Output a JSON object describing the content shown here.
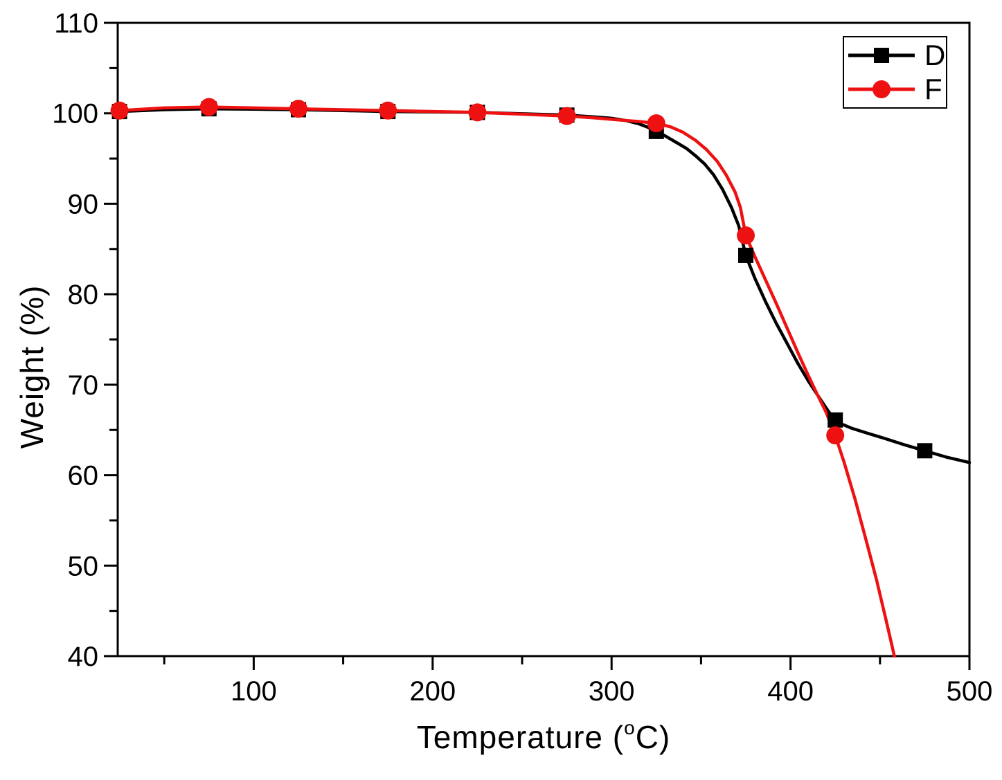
{
  "chart_data": {
    "type": "line",
    "title": "",
    "xlabel": "Temperature (°C)",
    "xlabel_parts": {
      "prefix": "Temperature (",
      "sup": "o",
      "suffix": "C)"
    },
    "ylabel": "Weight (%)",
    "xlim": [
      24,
      500
    ],
    "ylim": [
      40,
      110
    ],
    "x_major_ticks": [
      100,
      200,
      300,
      400,
      500
    ],
    "x_minor_ticks": [
      50,
      150,
      250,
      350,
      450
    ],
    "y_major_ticks": [
      110,
      100,
      90,
      80,
      70,
      60,
      50,
      40
    ],
    "y_minor_ticks": [
      105,
      95,
      85,
      75,
      65,
      55,
      45
    ],
    "grid": false,
    "legend_position": "top-right",
    "axis_color": "#000000",
    "background": "#ffffff",
    "series": [
      {
        "name": "D",
        "color": "#000000",
        "marker": "square",
        "marker_points": [
          [
            25,
            100.2
          ],
          [
            75,
            100.5
          ],
          [
            125,
            100.4
          ],
          [
            175,
            100.2
          ],
          [
            225,
            100.1
          ],
          [
            275,
            99.8
          ],
          [
            325,
            98.0
          ],
          [
            375,
            84.3
          ],
          [
            425,
            66.1
          ],
          [
            475,
            62.7
          ]
        ],
        "curve": [
          [
            25,
            100.2
          ],
          [
            50,
            100.4
          ],
          [
            75,
            100.5
          ],
          [
            100,
            100.45
          ],
          [
            125,
            100.4
          ],
          [
            150,
            100.3
          ],
          [
            175,
            100.2
          ],
          [
            200,
            100.15
          ],
          [
            225,
            100.1
          ],
          [
            250,
            99.95
          ],
          [
            275,
            99.8
          ],
          [
            290,
            99.6
          ],
          [
            300,
            99.45
          ],
          [
            308,
            99.2
          ],
          [
            315,
            98.85
          ],
          [
            321,
            98.4
          ],
          [
            325,
            98.0
          ],
          [
            330,
            97.5
          ],
          [
            336,
            96.8
          ],
          [
            342,
            96.1
          ],
          [
            347,
            95.3
          ],
          [
            352,
            94.4
          ],
          [
            357,
            93.2
          ],
          [
            362,
            91.6
          ],
          [
            367,
            89.6
          ],
          [
            371,
            87.6
          ],
          [
            375,
            84.3
          ],
          [
            380,
            81.8
          ],
          [
            386,
            79.2
          ],
          [
            392,
            76.8
          ],
          [
            398,
            74.6
          ],
          [
            404,
            72.4
          ],
          [
            410,
            70.4
          ],
          [
            416,
            68.6
          ],
          [
            421,
            67.1
          ],
          [
            425,
            66.1
          ],
          [
            428,
            65.7
          ],
          [
            434,
            65.2
          ],
          [
            442,
            64.7
          ],
          [
            452,
            64.1
          ],
          [
            463,
            63.4
          ],
          [
            475,
            62.7
          ],
          [
            487,
            62.0
          ],
          [
            500,
            61.4
          ]
        ]
      },
      {
        "name": "F",
        "color": "#ee1111",
        "marker": "circle",
        "marker_points": [
          [
            25,
            100.3
          ],
          [
            75,
            100.7
          ],
          [
            125,
            100.5
          ],
          [
            175,
            100.3
          ],
          [
            225,
            100.1
          ],
          [
            275,
            99.7
          ],
          [
            325,
            98.9
          ],
          [
            375,
            86.5
          ],
          [
            425,
            64.4
          ]
        ],
        "curve": [
          [
            25,
            100.3
          ],
          [
            50,
            100.6
          ],
          [
            75,
            100.7
          ],
          [
            100,
            100.6
          ],
          [
            125,
            100.5
          ],
          [
            150,
            100.4
          ],
          [
            175,
            100.3
          ],
          [
            200,
            100.2
          ],
          [
            225,
            100.1
          ],
          [
            250,
            99.9
          ],
          [
            275,
            99.7
          ],
          [
            290,
            99.5
          ],
          [
            305,
            99.25
          ],
          [
            315,
            99.1
          ],
          [
            325,
            98.9
          ],
          [
            333,
            98.5
          ],
          [
            340,
            97.9
          ],
          [
            347,
            97.0
          ],
          [
            353,
            96.0
          ],
          [
            359,
            94.7
          ],
          [
            364,
            93.2
          ],
          [
            369,
            91.3
          ],
          [
            372,
            89.6
          ],
          [
            375,
            86.5
          ],
          [
            380,
            84.2
          ],
          [
            386,
            81.6
          ],
          [
            392,
            79.0
          ],
          [
            398,
            76.3
          ],
          [
            404,
            73.6
          ],
          [
            410,
            71.0
          ],
          [
            415,
            68.9
          ],
          [
            420,
            66.9
          ],
          [
            425,
            64.4
          ],
          [
            430,
            61.4
          ],
          [
            436,
            57.4
          ],
          [
            442,
            53.0
          ],
          [
            448,
            48.5
          ],
          [
            453,
            44.3
          ],
          [
            457,
            40.9
          ],
          [
            458,
            40.0
          ]
        ]
      }
    ]
  }
}
